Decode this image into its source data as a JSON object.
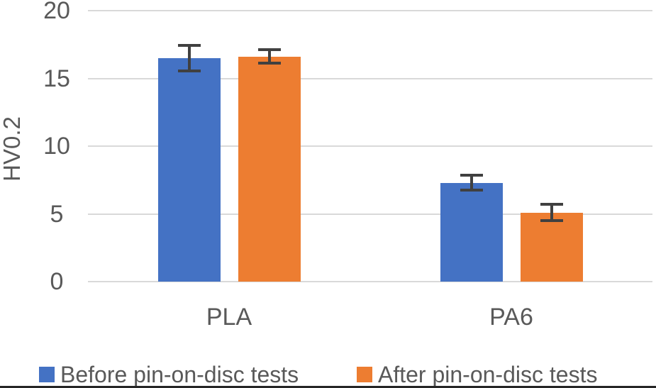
{
  "figure": {
    "background": "#FFFFFF",
    "bottom_border_color": "#262626"
  },
  "chart_data": {
    "type": "bar",
    "title": "",
    "categories": [
      "PLA",
      "PA6"
    ],
    "series": [
      {
        "name": "Before pin-on-disc tests",
        "color": "#4472C4",
        "values": [
          16.5,
          7.3
        ],
        "error_bars": [
          0.95,
          0.55
        ]
      },
      {
        "name": "After pin-on-disc tests",
        "color": "#ED7D31",
        "values": [
          16.6,
          5.1
        ],
        "error_bars": [
          0.5,
          0.6
        ]
      }
    ],
    "xlabel": "",
    "ylabel": "HV0.2",
    "ylim": [
      0,
      20
    ],
    "yticks": [
      0,
      5,
      10,
      15,
      20
    ],
    "grid": true,
    "gridline_color": "#D9D9D9",
    "error_bar_color": "#404040",
    "text_color": "#595959",
    "legend_position": "bottom"
  }
}
